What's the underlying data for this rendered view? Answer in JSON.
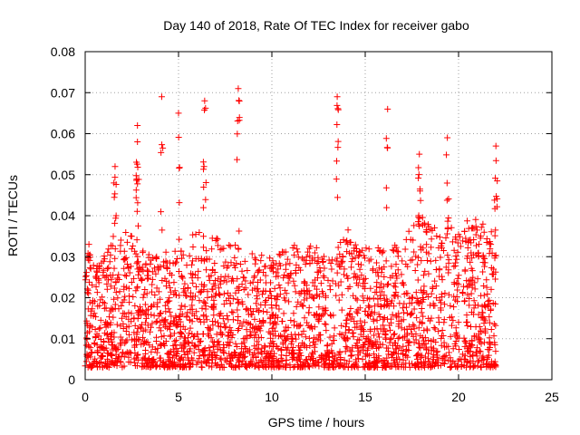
{
  "chart_data": {
    "type": "scatter",
    "title": "Day 140 of 2018, Rate Of TEC Index for receiver gabo",
    "xlabel": "GPS time / hours",
    "ylabel": "ROTI / TECUs",
    "xlim": [
      0,
      25
    ],
    "ylim": [
      0,
      0.08
    ],
    "x_ticks": [
      0,
      5,
      10,
      15,
      20,
      25
    ],
    "x_tick_labels": [
      "0",
      "5",
      "10",
      "15",
      "20",
      "25"
    ],
    "y_ticks": [
      0,
      0.01,
      0.02,
      0.03,
      0.04,
      0.05,
      0.06,
      0.07,
      0.08
    ],
    "y_tick_labels": [
      "0",
      "0.01",
      "0.02",
      "0.03",
      "0.04",
      "0.05",
      "0.06",
      "0.07",
      "0.08"
    ],
    "grid": true,
    "marker": "plus",
    "series": [
      {
        "name": "ROTI",
        "color": "#ff0000",
        "envelope_x": [
          0,
          1,
          2,
          3,
          4,
          5,
          6,
          7,
          8,
          9,
          10,
          11,
          12,
          13,
          14,
          15,
          16,
          17,
          18,
          19,
          20,
          21,
          22
        ],
        "envelope_y": [
          0.027,
          0.03,
          0.04,
          0.032,
          0.03,
          0.034,
          0.037,
          0.035,
          0.033,
          0.031,
          0.03,
          0.033,
          0.034,
          0.03,
          0.037,
          0.034,
          0.032,
          0.035,
          0.04,
          0.036,
          0.038,
          0.04,
          0.036
        ],
        "x": [
          8.2,
          4.1,
          13.5,
          6.4,
          5.0,
          2.8,
          16.2,
          19.4,
          2.8,
          22.0,
          17.9,
          1.6,
          0.2
        ],
        "y": [
          0.071,
          0.069,
          0.069,
          0.068,
          0.065,
          0.062,
          0.066,
          0.059,
          0.058,
          0.057,
          0.055,
          0.052,
          0.033
        ]
      }
    ]
  }
}
